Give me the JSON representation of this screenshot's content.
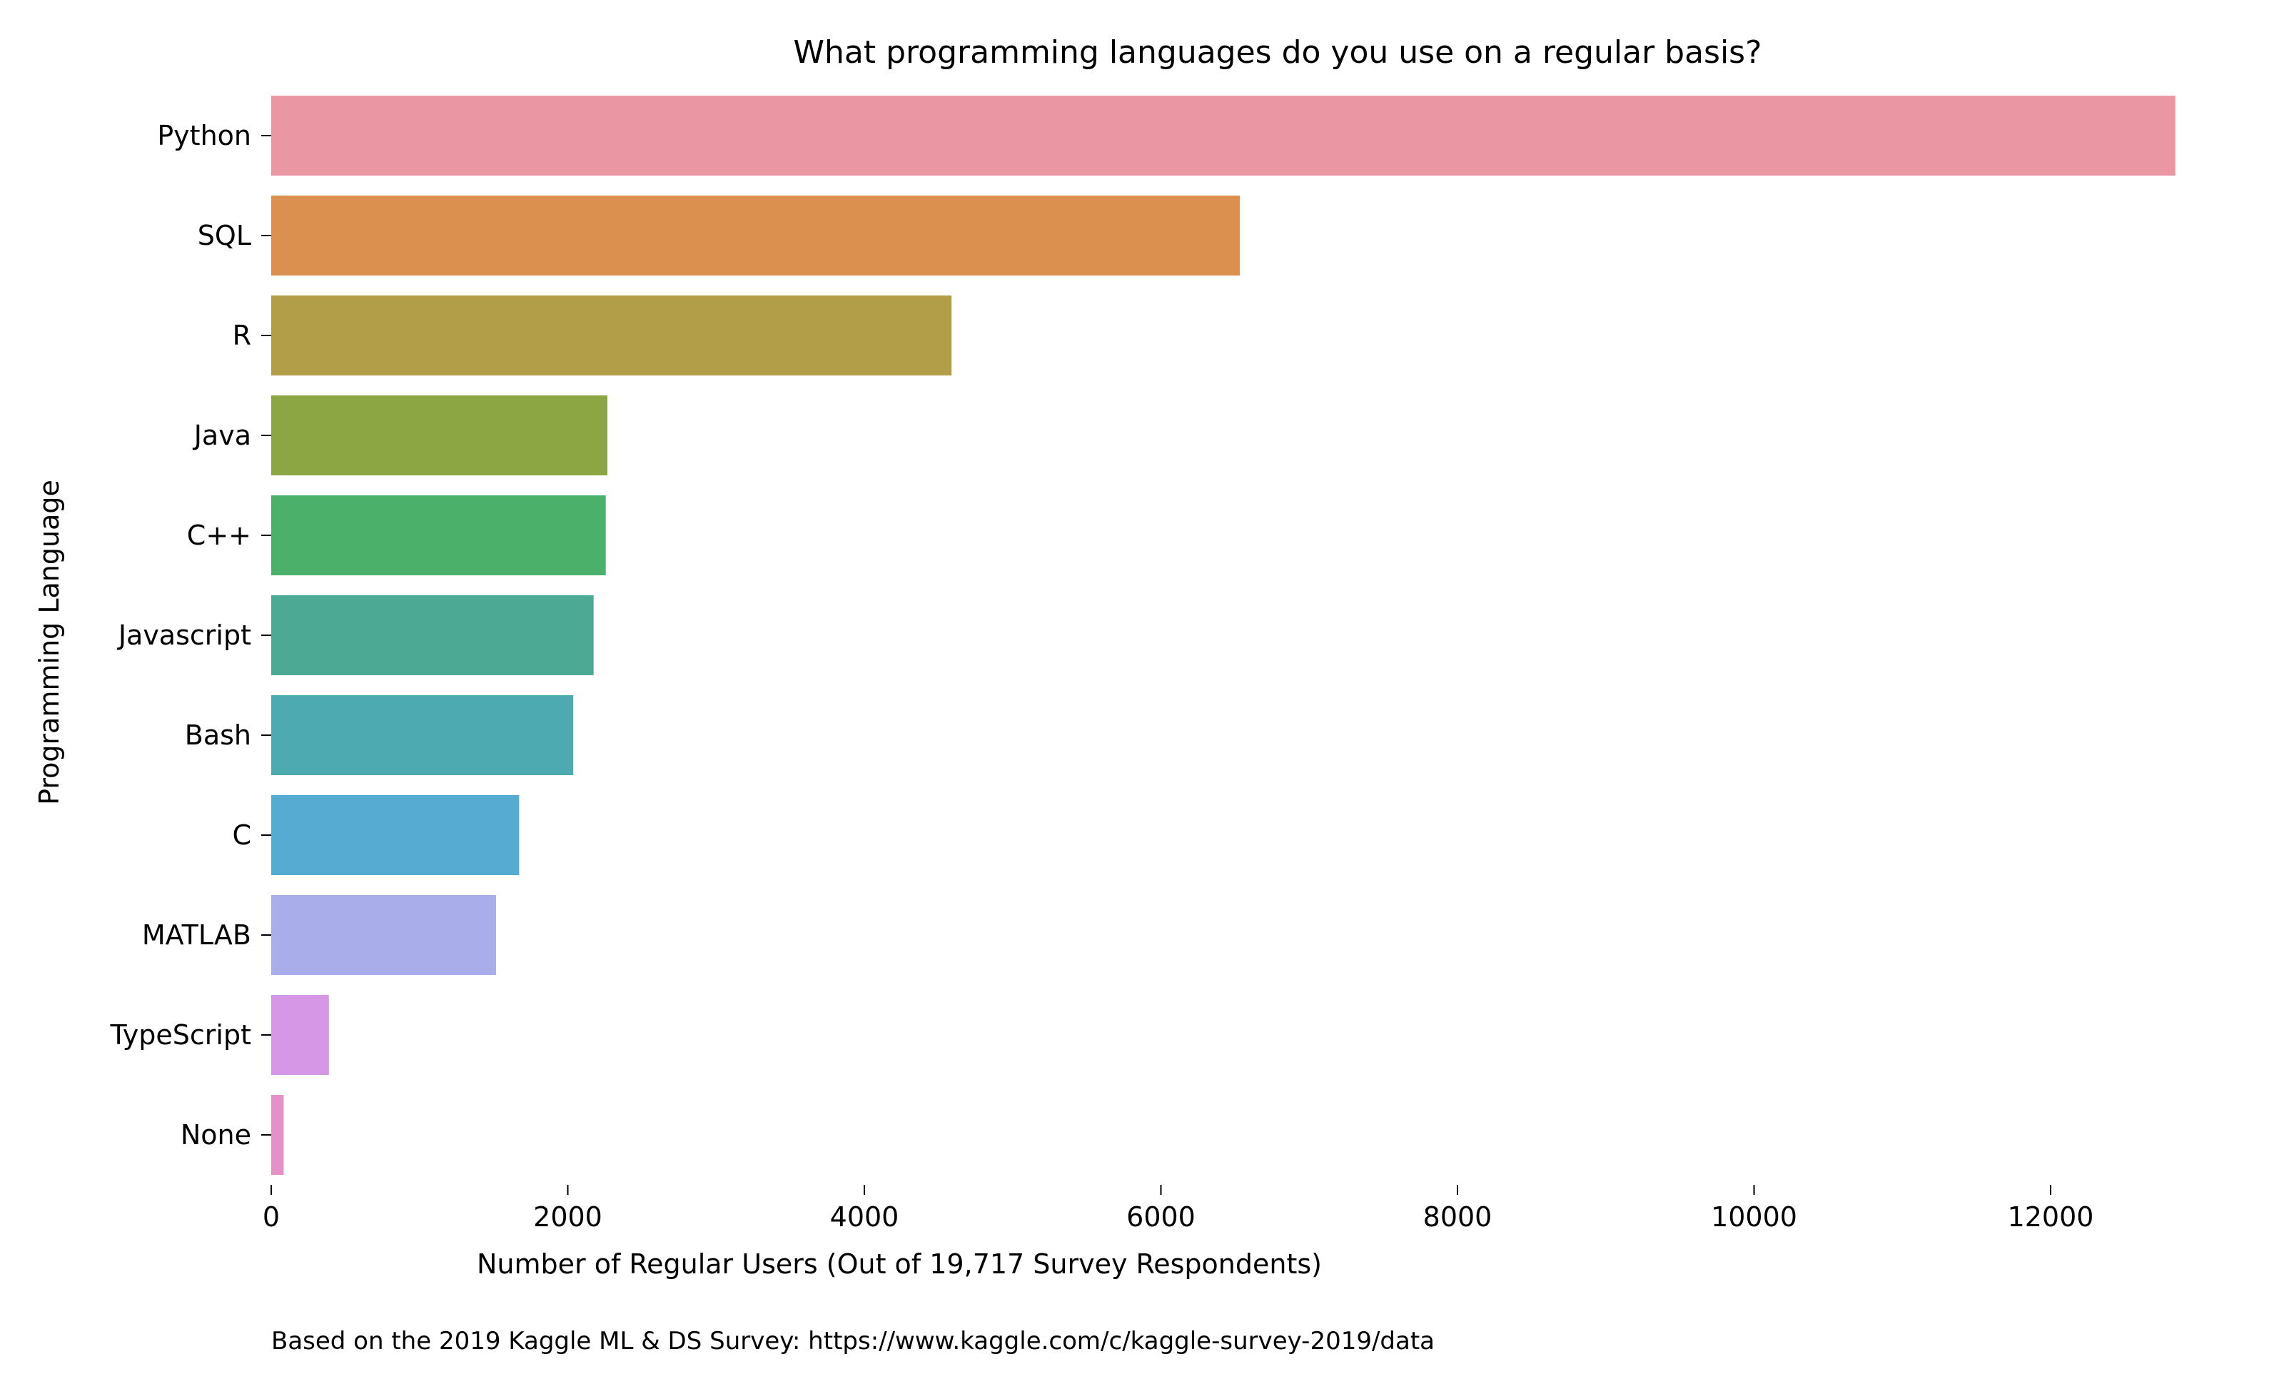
{
  "chart_data": {
    "type": "bar",
    "orientation": "horizontal",
    "title": "What programming languages do you use on a regular basis?",
    "xlabel": "Number of Regular Users (Out of 19,717 Survey Respondents)",
    "ylabel": "Programming Language",
    "footnote": "Based on the 2019 Kaggle ML & DS Survey: https://www.kaggle.com/c/kaggle-survey-2019/data",
    "categories": [
      "Python",
      "SQL",
      "R",
      "Java",
      "C++",
      "Javascript",
      "Bash",
      "C",
      "MATLAB",
      "TypeScript",
      "None"
    ],
    "values": [
      12841,
      6532,
      4588,
      2267,
      2256,
      2174,
      2037,
      1672,
      1516,
      389,
      84
    ],
    "colors": [
      "#EA96A3",
      "#DB904F",
      "#B29D48",
      "#8DA644",
      "#4AB06A",
      "#4BA994",
      "#4DAAB0",
      "#55ABD1",
      "#A9ADEA",
      "#D597E6",
      "#E491C8"
    ],
    "xlim": [
      0,
      12900
    ],
    "xticks": [
      0,
      2000,
      4000,
      6000,
      8000,
      10000,
      12000
    ],
    "xtick_labels": [
      "0",
      "2000",
      "4000",
      "6000",
      "8000",
      "10000",
      "12000"
    ],
    "grid": false,
    "legend": "none"
  }
}
